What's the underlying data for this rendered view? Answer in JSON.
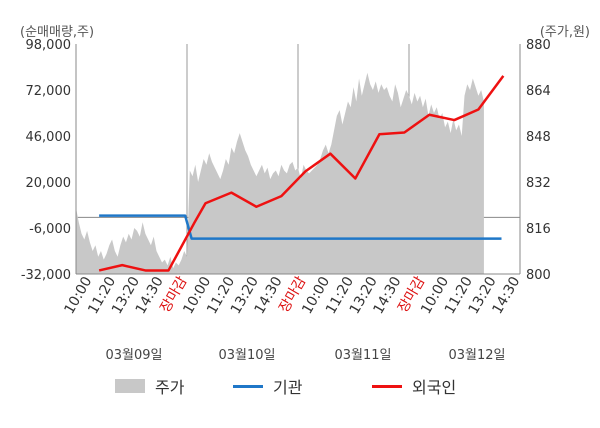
{
  "chart_data": {
    "type": "line",
    "left_axis_unit": "(순매매량,주)",
    "right_axis_unit": "(주가,원)",
    "left_ticks": [
      "98,000",
      "72,000",
      "46,000",
      "20,000",
      "-6,000",
      "-32,000"
    ],
    "left_tick_values": [
      98000,
      72000,
      46000,
      20000,
      -6000,
      -32000
    ],
    "right_ticks": [
      "880",
      "864",
      "848",
      "832",
      "816",
      "800"
    ],
    "right_tick_values": [
      880,
      864,
      848,
      832,
      816,
      800
    ],
    "left_ylim": [
      -32000,
      98000
    ],
    "right_ylim": [
      800,
      880
    ],
    "x_tick_labels": [
      "10:00",
      "11:20",
      "13:20",
      "14:30",
      "장마감",
      "10:00",
      "11:20",
      "13:20",
      "14:30",
      "장마감",
      "10:00",
      "11:20",
      "13:20",
      "14:30",
      "장마감",
      "10:00",
      "11:20",
      "13:20",
      "14:30"
    ],
    "close_label": "장마감",
    "date_labels": [
      "03월09일",
      "03월10일",
      "03월11일",
      "03월12일"
    ],
    "series": [
      {
        "name": "주가",
        "axis": "right",
        "color": "#c8c8c8",
        "x": [
          0,
          0.3,
          0.6,
          0.9,
          1.2,
          1.5,
          1.8,
          2.1,
          2.4,
          2.7,
          3.0,
          3.3,
          3.6,
          3.9,
          4.2,
          4.5,
          4.8,
          5.1,
          5.4,
          5.7,
          6.0,
          6.3,
          6.6,
          6.9,
          7.2,
          7.5,
          7.8,
          8.1,
          8.4,
          8.7,
          9.0,
          9.3,
          9.6,
          9.9,
          10.2,
          10.5,
          10.8,
          11.1,
          11.4,
          11.7,
          12.0,
          12.3,
          12.6,
          12.9,
          13.2,
          13.5,
          13.8,
          14.1,
          14.4,
          14.7,
          15.0,
          15.3,
          15.6,
          15.9,
          16.2,
          16.5,
          16.8,
          17.1,
          17.4,
          17.7,
          18.0,
          18.3,
          18.6,
          18.9,
          19.2,
          19.5,
          19.8,
          20.1,
          20.4,
          20.7,
          21.0,
          21.3,
          21.6,
          21.9,
          22.2,
          22.5,
          22.8,
          23.1,
          23.4,
          23.7,
          24.0,
          24.3,
          24.6,
          24.9,
          25.2,
          25.5,
          25.8,
          26.1,
          26.4,
          26.7,
          27.0,
          27.3,
          27.6,
          27.9,
          28.2,
          28.5,
          28.8,
          29.1,
          29.4,
          29.7,
          30.0,
          30.3,
          30.6,
          30.9,
          31.2,
          31.5,
          31.8,
          32.1,
          32.4,
          32.7,
          33.0,
          33.3,
          33.6,
          33.9,
          34.2,
          34.5,
          34.8,
          35.1,
          35.4,
          35.7,
          36.0,
          36.3,
          36.6,
          36.9,
          37.2,
          37.5,
          37.8,
          38.1,
          38.4,
          38.7,
          39.0,
          39.3,
          39.6,
          39.9,
          40.2,
          40.5,
          40.8,
          41.1,
          41.4,
          41.7,
          42.0,
          42.3,
          42.6,
          42.9,
          43.2,
          43.5,
          43.8,
          44.1,
          44.4,
          44.7,
          45.0
        ],
        "values": [
          823,
          818,
          814,
          812,
          815,
          811,
          808,
          810,
          806,
          808,
          805,
          807,
          810,
          812,
          808,
          806,
          810,
          813,
          811,
          814,
          812,
          816,
          815,
          813,
          818,
          814,
          812,
          810,
          813,
          808,
          806,
          804,
          805,
          803,
          806,
          802,
          804,
          803,
          805,
          808,
          806,
          836,
          834,
          838,
          832,
          836,
          840,
          838,
          842,
          839,
          837,
          835,
          833,
          836,
          840,
          838,
          844,
          842,
          846,
          849,
          846,
          843,
          841,
          838,
          836,
          834,
          836,
          838,
          835,
          837,
          833,
          835,
          836,
          834,
          838,
          836,
          835,
          838,
          839,
          836,
          837,
          833,
          838,
          836,
          835,
          836,
          837,
          838,
          840,
          843,
          845,
          842,
          845,
          850,
          855,
          857,
          852,
          856,
          860,
          858,
          865,
          860,
          868,
          862,
          866,
          870,
          866,
          864,
          867,
          863,
          866,
          864,
          865,
          862,
          860,
          866,
          863,
          858,
          861,
          864,
          862,
          859,
          863,
          860,
          862,
          858,
          861,
          855,
          859,
          856,
          858,
          854,
          856,
          851,
          853,
          849,
          854,
          850,
          852,
          848,
          862,
          866,
          864,
          868,
          865,
          862,
          864,
          860,
          0,
          0,
          0
        ]
      },
      {
        "name": "기관",
        "axis": "left",
        "color": "#1f77c8",
        "x": [
          2.5,
          9.5,
          10.5,
          11.8,
          12.5,
          20.0,
          30.0,
          40.0,
          46.0
        ],
        "values": [
          1000,
          1000,
          1000,
          1000,
          -12000,
          -12000,
          -12000,
          -12000,
          -12000
        ]
      },
      {
        "name": "외국인",
        "axis": "left",
        "color": "#ee1111",
        "x": [
          2.5,
          5.0,
          7.5,
          10.0,
          12.8,
          14.0,
          16.8,
          19.5,
          22.2,
          24.8,
          27.5,
          30.2,
          32.8,
          35.5,
          38.2,
          40.9,
          43.5,
          46.2
        ],
        "values": [
          -30000,
          -27000,
          -30000,
          -30000,
          -3000,
          8000,
          14000,
          6000,
          12000,
          26000,
          36000,
          22000,
          47000,
          48000,
          58000,
          55000,
          61000,
          80000
        ]
      }
    ],
    "legend": [
      "주가",
      "기관",
      "외국인"
    ]
  }
}
